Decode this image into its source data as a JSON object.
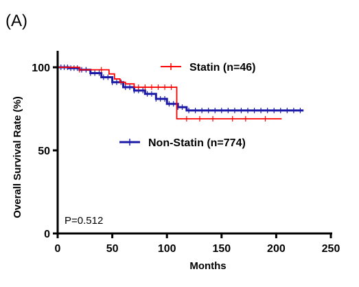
{
  "panel_label": "(A)",
  "colors": {
    "statin": "#ff0000",
    "non_statin": "#1a1aa6",
    "axis": "#000000"
  },
  "chart_data": {
    "type": "line",
    "title": "",
    "xlabel": "Months",
    "ylabel": "Overall Survival Rate (%)",
    "xlim": [
      0,
      250
    ],
    "ylim": [
      0,
      100
    ],
    "xticks": [
      0,
      50,
      100,
      150,
      200,
      250
    ],
    "yticks": [
      0,
      50,
      100
    ],
    "grid": false,
    "annotation": "P=0.512",
    "series": [
      {
        "key": "statin",
        "name": "Statin (n=46)",
        "step": true,
        "points": [
          [
            0,
            100
          ],
          [
            20,
            98.5
          ],
          [
            45,
            98.5
          ],
          [
            47,
            96
          ],
          [
            52,
            93
          ],
          [
            57,
            91
          ],
          [
            62,
            90
          ],
          [
            70,
            88
          ],
          [
            108,
            88
          ],
          [
            109,
            69
          ],
          [
            205,
            69
          ]
        ],
        "censor": [
          20,
          40,
          74,
          80,
          86,
          92,
          98,
          104,
          118,
          130,
          142,
          160,
          172,
          190
        ]
      },
      {
        "key": "non_statin",
        "name": "Non-Statin (n=774)",
        "step": true,
        "points": [
          [
            0,
            100
          ],
          [
            10,
            99.5
          ],
          [
            20,
            98.5
          ],
          [
            30,
            96.5
          ],
          [
            40,
            94
          ],
          [
            50,
            91
          ],
          [
            60,
            88
          ],
          [
            70,
            86
          ],
          [
            80,
            84
          ],
          [
            90,
            81
          ],
          [
            100,
            78
          ],
          [
            110,
            76
          ],
          [
            118,
            74
          ],
          [
            225,
            74
          ]
        ],
        "censor": [
          3,
          6,
          9,
          12,
          15,
          18,
          22,
          26,
          30,
          34,
          38,
          42,
          46,
          50,
          54,
          58,
          62,
          66,
          70,
          74,
          78,
          82,
          86,
          90,
          94,
          98,
          102,
          106,
          110,
          114,
          120,
          126,
          132,
          138,
          144,
          150,
          156,
          162,
          168,
          174,
          180,
          186,
          192,
          198,
          204,
          210,
          216,
          222
        ]
      }
    ],
    "legend": [
      {
        "key": "statin",
        "label": "Statin (n=46)"
      },
      {
        "key": "non_statin",
        "label": "Non-Statin (n=774)"
      }
    ]
  }
}
